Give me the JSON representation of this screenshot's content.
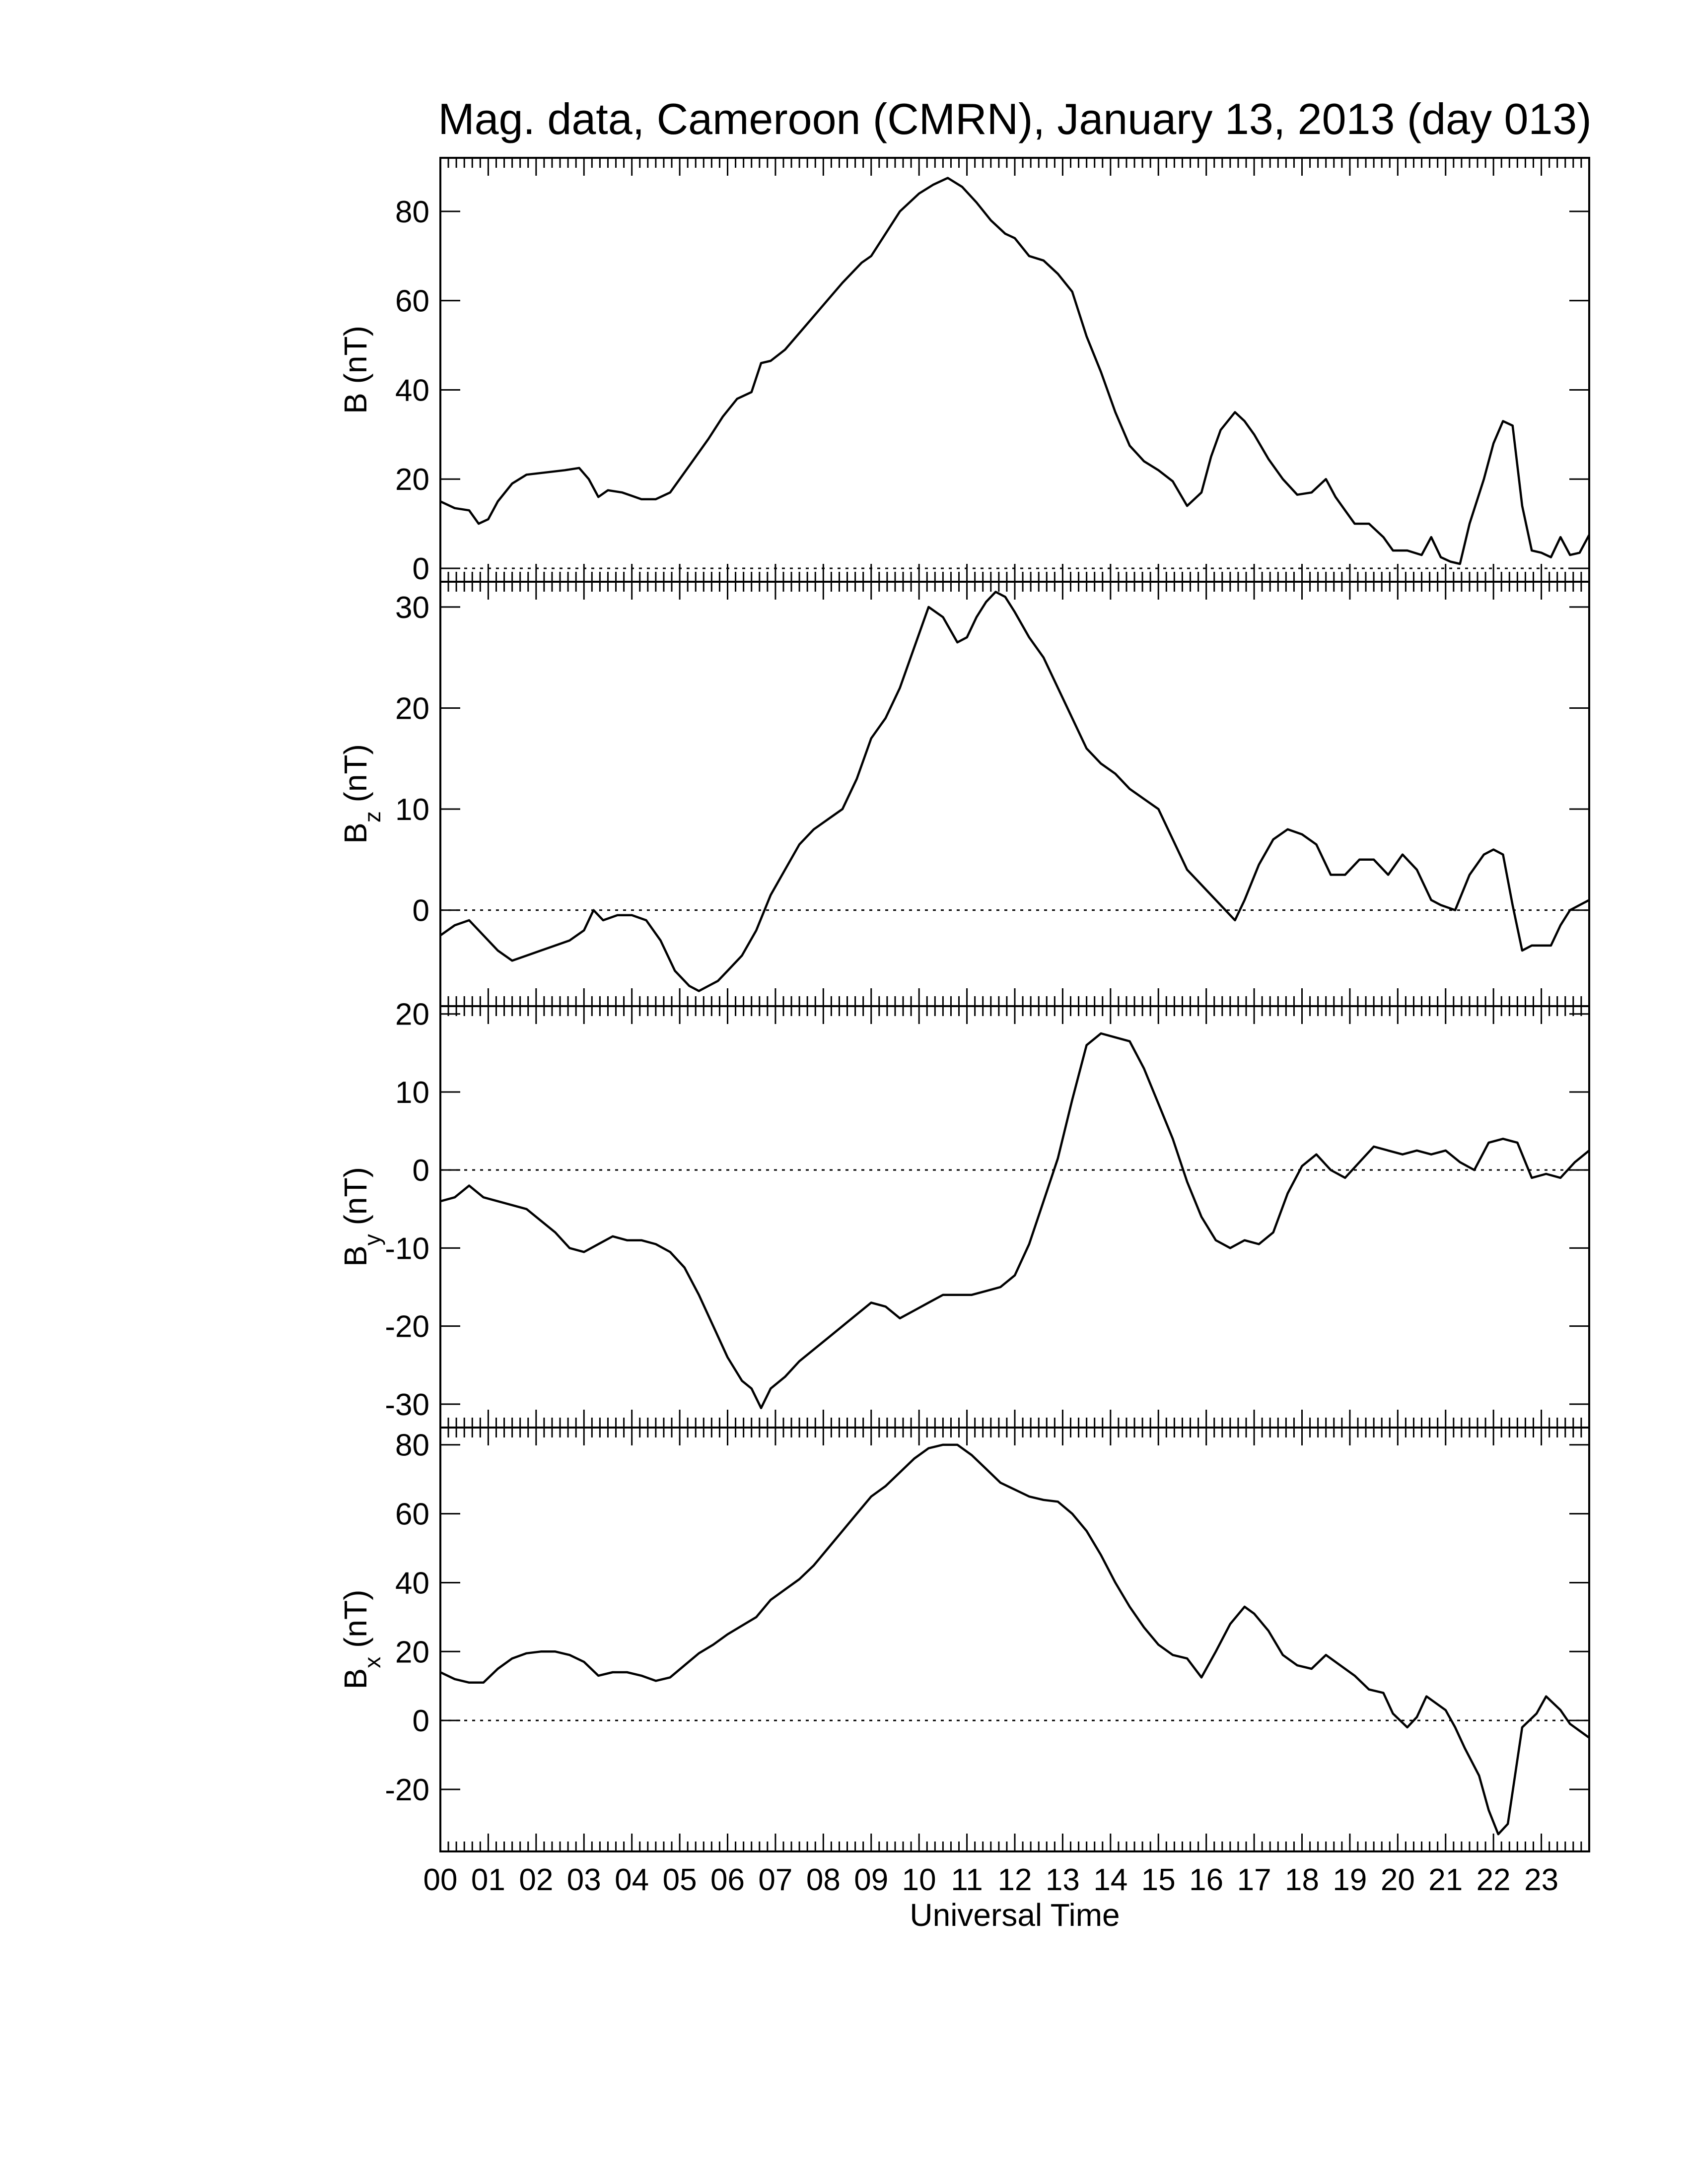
{
  "figure": {
    "title": "Mag. data, Cameroon (CMRN), January 13, 2013 (day 013)",
    "xlabel": "Universal Time"
  },
  "chart_data": [
    {
      "type": "line",
      "panel": "B",
      "ylabel": "B (nT)",
      "ylabel_main": "B",
      "ylabel_sub": "",
      "ylabel_unit": "(nT)",
      "xlim": [
        0,
        24
      ],
      "ylim": [
        -3,
        92
      ],
      "yticks": [
        0,
        20,
        40,
        60,
        80
      ],
      "zero_line": true,
      "series": [
        {
          "x": [
            0,
            0.3,
            0.6,
            0.8,
            1.0,
            1.2,
            1.5,
            1.8,
            2.2,
            2.6,
            2.9,
            3.1,
            3.3,
            3.5,
            3.8,
            4.2,
            4.5,
            4.8,
            5.2,
            5.6,
            5.9,
            6.2,
            6.5,
            6.7,
            6.9,
            7.2,
            7.6,
            8.0,
            8.4,
            8.8,
            9.0,
            9.3,
            9.6,
            10.0,
            10.3,
            10.6,
            10.9,
            11.2,
            11.5,
            11.8,
            12.0,
            12.3,
            12.6,
            12.9,
            13.2,
            13.5,
            13.8,
            14.1,
            14.4,
            14.7,
            15.0,
            15.3,
            15.6,
            15.9,
            16.1,
            16.3,
            16.6,
            16.8,
            17.0,
            17.3,
            17.6,
            17.9,
            18.2,
            18.5,
            18.7,
            18.9,
            19.1,
            19.4,
            19.7,
            19.9,
            20.2,
            20.5,
            20.7,
            20.9,
            21.1,
            21.3,
            21.5,
            21.8,
            22.0,
            22.2,
            22.4,
            22.6,
            22.8,
            23.0,
            23.2,
            23.4,
            23.6,
            23.8,
            24.0
          ],
          "y": [
            15,
            13.5,
            13,
            10,
            11,
            15,
            19,
            21,
            21.5,
            22,
            22.5,
            20,
            16,
            17.5,
            17,
            15.5,
            15.5,
            17,
            23,
            29,
            34,
            38,
            39.5,
            46,
            46.5,
            49,
            54,
            59,
            64,
            68.5,
            70,
            75,
            80,
            84,
            86,
            87.5,
            85.5,
            82,
            78,
            75,
            74,
            70,
            69,
            66,
            62,
            52,
            44,
            35,
            27.5,
            24,
            22,
            19.5,
            14,
            17,
            25,
            31,
            35,
            33,
            30,
            24.5,
            20,
            16.5,
            17,
            20,
            16,
            13,
            10,
            10,
            7,
            4,
            4,
            3,
            7,
            2.5,
            1.5,
            1,
            10,
            20,
            28,
            33,
            32,
            14,
            4,
            3.5,
            2.5,
            7,
            3,
            3.5,
            7.5
          ]
        }
      ]
    },
    {
      "type": "line",
      "panel": "Bz",
      "ylabel": "Bz (nT)",
      "ylabel_main": "B",
      "ylabel_sub": "z",
      "ylabel_unit": "(nT)",
      "xlim": [
        0,
        24
      ],
      "ylim": [
        -9.5,
        32.5
      ],
      "yticks": [
        0,
        10,
        20,
        30
      ],
      "zero_line": true,
      "series": [
        {
          "x": [
            0,
            0.3,
            0.6,
            0.9,
            1.2,
            1.5,
            1.8,
            2.1,
            2.4,
            2.7,
            3.0,
            3.2,
            3.4,
            3.7,
            4.0,
            4.3,
            4.6,
            4.9,
            5.2,
            5.4,
            5.6,
            5.8,
            6.0,
            6.3,
            6.6,
            6.9,
            7.2,
            7.5,
            7.8,
            8.1,
            8.4,
            8.7,
            9.0,
            9.3,
            9.6,
            9.9,
            10.2,
            10.5,
            10.8,
            11.0,
            11.2,
            11.4,
            11.6,
            11.8,
            12.0,
            12.3,
            12.6,
            12.9,
            13.2,
            13.5,
            13.8,
            14.1,
            14.4,
            14.7,
            15.0,
            15.3,
            15.6,
            15.8,
            16.0,
            16.3,
            16.6,
            16.8,
            17.1,
            17.4,
            17.7,
            18.0,
            18.3,
            18.6,
            18.9,
            19.2,
            19.5,
            19.8,
            20.1,
            20.4,
            20.7,
            20.9,
            21.2,
            21.5,
            21.8,
            22.0,
            22.2,
            22.4,
            22.6,
            22.8,
            23.0,
            23.2,
            23.4,
            23.6,
            23.8,
            24.0
          ],
          "y": [
            -2.5,
            -1.5,
            -1,
            -2.5,
            -4,
            -5,
            -4.5,
            -4,
            -3.5,
            -3,
            -2,
            0,
            -1,
            -0.5,
            -0.5,
            -1,
            -3,
            -6,
            -7.5,
            -8,
            -7.5,
            -7,
            -6,
            -4.5,
            -2,
            1.5,
            4,
            6.5,
            8,
            9,
            10,
            13,
            17,
            19,
            22,
            26,
            30,
            29,
            26.5,
            27,
            29,
            30.5,
            31.5,
            31,
            29.5,
            27,
            25,
            22,
            19,
            16,
            14.5,
            13.5,
            12,
            11,
            10,
            7,
            4,
            3,
            2,
            0.5,
            -1,
            1,
            4.5,
            7,
            8,
            7.5,
            6.5,
            3.5,
            3.5,
            5,
            5,
            3.5,
            5.5,
            4,
            1,
            0.5,
            0,
            3.5,
            5.5,
            6,
            5.5,
            0.5,
            -4,
            -3.5,
            -3.5,
            -3.5,
            -1.5,
            0,
            0.5,
            1
          ]
        }
      ]
    },
    {
      "type": "line",
      "panel": "By",
      "ylabel": "By (nT)",
      "ylabel_main": "B",
      "ylabel_sub": "y",
      "ylabel_unit": "(nT)",
      "xlim": [
        0,
        24
      ],
      "ylim": [
        -33,
        21
      ],
      "yticks": [
        -30,
        -20,
        -10,
        0,
        10,
        20
      ],
      "zero_line": true,
      "series": [
        {
          "x": [
            0,
            0.3,
            0.6,
            0.9,
            1.2,
            1.5,
            1.8,
            2.1,
            2.4,
            2.7,
            3.0,
            3.3,
            3.6,
            3.9,
            4.2,
            4.5,
            4.8,
            5.1,
            5.4,
            5.7,
            6.0,
            6.3,
            6.5,
            6.7,
            6.9,
            7.2,
            7.5,
            7.8,
            8.1,
            8.4,
            8.7,
            9.0,
            9.3,
            9.6,
            9.9,
            10.2,
            10.5,
            10.8,
            11.1,
            11.4,
            11.7,
            12.0,
            12.3,
            12.6,
            12.9,
            13.2,
            13.5,
            13.8,
            14.1,
            14.4,
            14.7,
            15.0,
            15.3,
            15.6,
            15.9,
            16.2,
            16.5,
            16.8,
            17.1,
            17.4,
            17.7,
            18.0,
            18.3,
            18.6,
            18.9,
            19.2,
            19.5,
            19.8,
            20.1,
            20.4,
            20.7,
            21.0,
            21.3,
            21.6,
            21.9,
            22.2,
            22.5,
            22.8,
            23.1,
            23.4,
            23.7,
            24.0
          ],
          "y": [
            -4,
            -3.5,
            -2,
            -3.5,
            -4,
            -4.5,
            -5,
            -6.5,
            -8,
            -10,
            -10.5,
            -9.5,
            -8.5,
            -9,
            -9,
            -9.5,
            -10.5,
            -12.5,
            -16,
            -20,
            -24,
            -27,
            -28,
            -30.5,
            -28,
            -26.5,
            -24.5,
            -23,
            -21.5,
            -20,
            -18.5,
            -17,
            -17.5,
            -19,
            -18,
            -17,
            -16,
            -16,
            -16,
            -15.5,
            -15,
            -13.5,
            -9.5,
            -4,
            1.5,
            9,
            16,
            17.5,
            17,
            16.5,
            13,
            8.5,
            4,
            -1.5,
            -6,
            -9,
            -10,
            -9,
            -9.5,
            -8,
            -3,
            0.5,
            2,
            0,
            -1,
            1,
            3,
            2.5,
            2,
            2.5,
            2,
            2.5,
            1,
            0,
            3.5,
            4,
            3.5,
            -1,
            -0.5,
            -1,
            1,
            2.5
          ]
        }
      ]
    },
    {
      "type": "line",
      "panel": "Bx",
      "ylabel": "Bx (nT)",
      "ylabel_main": "B",
      "ylabel_sub": "x",
      "ylabel_unit": "(nT)",
      "xlim": [
        0,
        24
      ],
      "ylim": [
        -38,
        85
      ],
      "yticks": [
        -20,
        0,
        20,
        40,
        60,
        80
      ],
      "zero_line": true,
      "series": [
        {
          "x": [
            0,
            0.3,
            0.6,
            0.9,
            1.2,
            1.5,
            1.8,
            2.1,
            2.4,
            2.7,
            3.0,
            3.3,
            3.6,
            3.9,
            4.2,
            4.5,
            4.8,
            5.1,
            5.4,
            5.7,
            6.0,
            6.3,
            6.6,
            6.9,
            7.2,
            7.5,
            7.8,
            8.1,
            8.4,
            8.7,
            9.0,
            9.3,
            9.6,
            9.9,
            10.2,
            10.5,
            10.8,
            11.1,
            11.4,
            11.7,
            12.0,
            12.3,
            12.6,
            12.9,
            13.2,
            13.5,
            13.8,
            14.1,
            14.4,
            14.7,
            15.0,
            15.3,
            15.6,
            15.9,
            16.2,
            16.5,
            16.8,
            17.0,
            17.3,
            17.6,
            17.9,
            18.2,
            18.5,
            18.8,
            19.1,
            19.4,
            19.7,
            19.9,
            20.2,
            20.4,
            20.6,
            20.8,
            21.0,
            21.2,
            21.4,
            21.7,
            21.9,
            22.1,
            22.3,
            22.6,
            22.9,
            23.1,
            23.4,
            23.6,
            23.8,
            24.0
          ],
          "y": [
            14,
            12,
            11,
            11,
            15,
            18,
            19.5,
            20,
            20,
            19,
            17,
            13,
            14,
            14,
            13,
            11.5,
            12.5,
            16,
            19.5,
            22,
            25,
            27.5,
            30,
            35,
            38,
            41,
            45,
            50,
            55,
            60,
            65,
            68,
            72,
            76,
            79,
            80,
            80,
            77,
            73,
            69,
            67,
            65,
            64,
            63.5,
            60,
            55,
            48,
            40,
            33,
            27,
            22,
            19,
            18,
            12.5,
            20,
            28,
            33,
            31,
            26,
            19,
            16,
            15,
            19,
            16,
            13,
            9,
            8,
            2,
            -2,
            1,
            7,
            5,
            3,
            -2,
            -8,
            -16,
            -26,
            -33,
            -30,
            -2,
            2,
            7,
            3,
            -1,
            -3,
            -5
          ]
        }
      ]
    }
  ],
  "x_axis": {
    "tick_labels": [
      "00",
      "01",
      "02",
      "03",
      "04",
      "05",
      "06",
      "07",
      "08",
      "09",
      "10",
      "11",
      "12",
      "13",
      "14",
      "15",
      "16",
      "17",
      "18",
      "19",
      "20",
      "21",
      "22",
      "23"
    ]
  }
}
